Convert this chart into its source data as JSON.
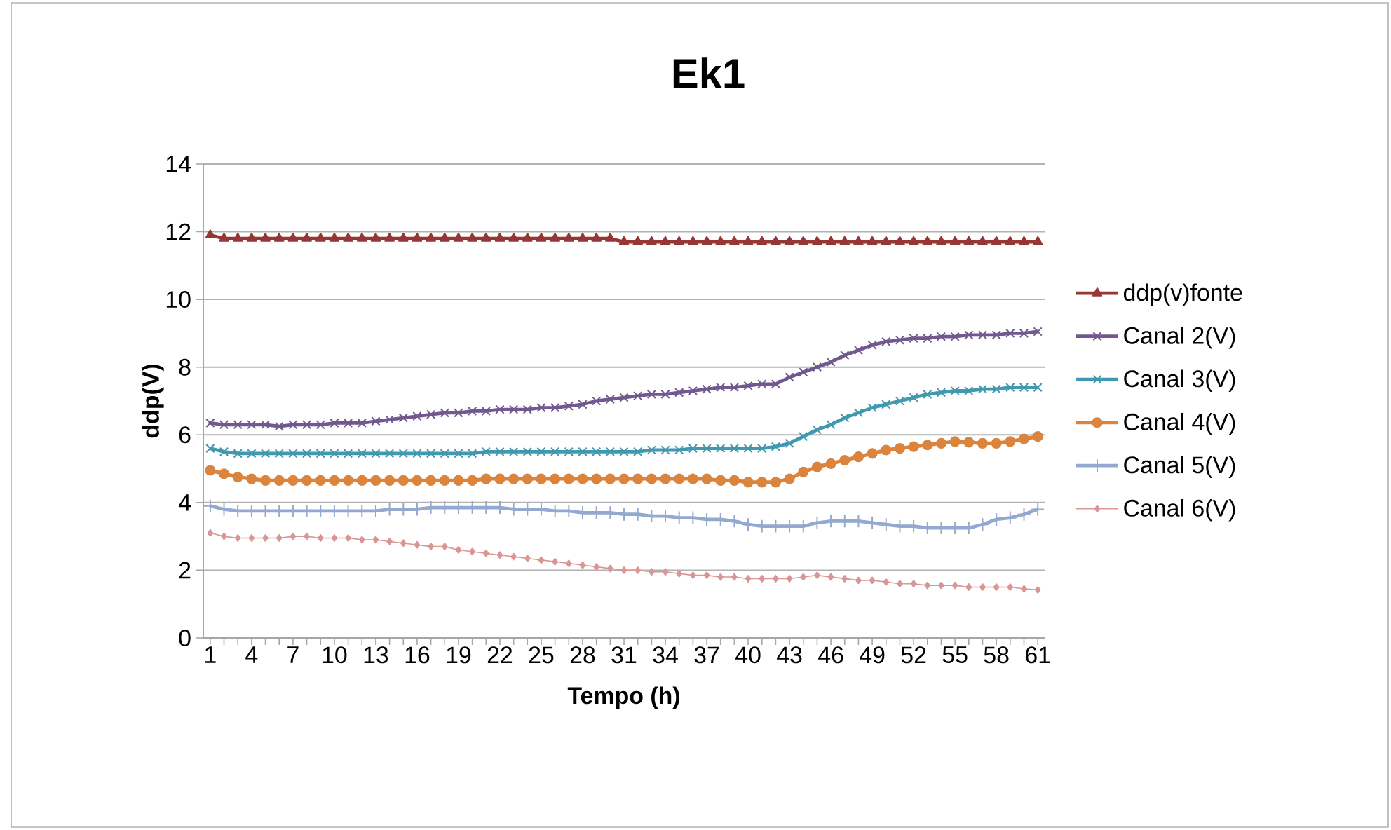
{
  "chart_data": {
    "type": "line",
    "title": "Ek1",
    "xlabel": "Tempo (h)",
    "ylabel": "ddp(V)",
    "categories": [
      "1",
      null,
      null,
      "4",
      null,
      null,
      "7",
      null,
      null,
      "10",
      null,
      null,
      "13",
      null,
      null,
      "16",
      null,
      null,
      "19",
      null,
      null,
      "22",
      null,
      null,
      "25",
      null,
      null,
      "28",
      null,
      null,
      "31",
      null,
      null,
      "34",
      null,
      null,
      "37",
      null,
      null,
      "40",
      null,
      null,
      "43",
      null,
      null,
      "46",
      null,
      null,
      "49",
      null,
      null,
      "52",
      null,
      null,
      "55",
      null,
      null,
      "58",
      null,
      null,
      "61"
    ],
    "ylim": [
      0,
      14
    ],
    "yticks": [
      0,
      2,
      4,
      6,
      8,
      10,
      12,
      14
    ],
    "grid": "y",
    "legend": "right",
    "series": [
      {
        "name": "ddp(v)fonte",
        "color": "#953735",
        "marker": "triangle",
        "values": [
          11.9,
          11.8,
          11.8,
          11.8,
          11.8,
          11.8,
          11.8,
          11.8,
          11.8,
          11.8,
          11.8,
          11.8,
          11.8,
          11.8,
          11.8,
          11.8,
          11.8,
          11.8,
          11.8,
          11.8,
          11.8,
          11.8,
          11.8,
          11.8,
          11.8,
          11.8,
          11.8,
          11.8,
          11.8,
          11.8,
          11.7,
          11.7,
          11.7,
          11.7,
          11.7,
          11.7,
          11.7,
          11.7,
          11.7,
          11.7,
          11.7,
          11.7,
          11.7,
          11.7,
          11.7,
          11.7,
          11.7,
          11.7,
          11.7,
          11.7,
          11.7,
          11.7,
          11.7,
          11.7,
          11.7,
          11.7,
          11.7,
          11.7,
          11.7,
          11.7,
          11.7
        ]
      },
      {
        "name": "Canal 2(V)",
        "color": "#71588f",
        "marker": "cross",
        "values": [
          6.35,
          6.3,
          6.3,
          6.3,
          6.3,
          6.25,
          6.3,
          6.3,
          6.3,
          6.35,
          6.35,
          6.35,
          6.4,
          6.45,
          6.5,
          6.55,
          6.6,
          6.65,
          6.65,
          6.7,
          6.7,
          6.75,
          6.75,
          6.75,
          6.8,
          6.8,
          6.85,
          6.9,
          7.0,
          7.05,
          7.1,
          7.15,
          7.2,
          7.2,
          7.25,
          7.3,
          7.35,
          7.4,
          7.4,
          7.45,
          7.5,
          7.5,
          7.7,
          7.85,
          8.0,
          8.15,
          8.35,
          8.5,
          8.65,
          8.75,
          8.8,
          8.85,
          8.85,
          8.9,
          8.9,
          8.95,
          8.95,
          8.95,
          9.0,
          9.0,
          9.05
        ]
      },
      {
        "name": "Canal 3(V)",
        "color": "#4198af",
        "marker": "cross",
        "values": [
          5.6,
          5.5,
          5.45,
          5.45,
          5.45,
          5.45,
          5.45,
          5.45,
          5.45,
          5.45,
          5.45,
          5.45,
          5.45,
          5.45,
          5.45,
          5.45,
          5.45,
          5.45,
          5.45,
          5.45,
          5.5,
          5.5,
          5.5,
          5.5,
          5.5,
          5.5,
          5.5,
          5.5,
          5.5,
          5.5,
          5.5,
          5.5,
          5.55,
          5.55,
          5.55,
          5.6,
          5.6,
          5.6,
          5.6,
          5.6,
          5.6,
          5.65,
          5.75,
          5.95,
          6.15,
          6.3,
          6.5,
          6.65,
          6.8,
          6.9,
          7.0,
          7.1,
          7.2,
          7.25,
          7.3,
          7.3,
          7.35,
          7.35,
          7.4,
          7.4,
          7.4
        ]
      },
      {
        "name": "Canal 4(V)",
        "color": "#db843d",
        "marker": "circle",
        "values": [
          4.95,
          4.85,
          4.75,
          4.7,
          4.65,
          4.65,
          4.65,
          4.65,
          4.65,
          4.65,
          4.65,
          4.65,
          4.65,
          4.65,
          4.65,
          4.65,
          4.65,
          4.65,
          4.65,
          4.65,
          4.7,
          4.7,
          4.7,
          4.7,
          4.7,
          4.7,
          4.7,
          4.7,
          4.7,
          4.7,
          4.7,
          4.7,
          4.7,
          4.7,
          4.7,
          4.7,
          4.7,
          4.65,
          4.65,
          4.6,
          4.6,
          4.6,
          4.7,
          4.9,
          5.05,
          5.15,
          5.25,
          5.35,
          5.45,
          5.55,
          5.6,
          5.65,
          5.7,
          5.75,
          5.8,
          5.78,
          5.75,
          5.75,
          5.8,
          5.88,
          5.95
        ]
      },
      {
        "name": "Canal 5(V)",
        "color": "#93a9cf",
        "marker": "plus",
        "values": [
          3.9,
          3.8,
          3.75,
          3.75,
          3.75,
          3.75,
          3.75,
          3.75,
          3.75,
          3.75,
          3.75,
          3.75,
          3.75,
          3.8,
          3.8,
          3.8,
          3.85,
          3.85,
          3.85,
          3.85,
          3.85,
          3.85,
          3.8,
          3.8,
          3.8,
          3.75,
          3.75,
          3.7,
          3.7,
          3.7,
          3.65,
          3.65,
          3.6,
          3.6,
          3.55,
          3.55,
          3.5,
          3.5,
          3.45,
          3.35,
          3.3,
          3.3,
          3.3,
          3.3,
          3.4,
          3.45,
          3.45,
          3.45,
          3.4,
          3.35,
          3.3,
          3.3,
          3.25,
          3.25,
          3.25,
          3.25,
          3.35,
          3.5,
          3.55,
          3.65,
          3.8
        ]
      },
      {
        "name": "Canal 6(V)",
        "color": "#d99694",
        "marker": "diamond",
        "values": [
          3.1,
          3.0,
          2.95,
          2.95,
          2.95,
          2.95,
          3.0,
          3.0,
          2.95,
          2.95,
          2.95,
          2.9,
          2.9,
          2.85,
          2.8,
          2.75,
          2.7,
          2.7,
          2.6,
          2.55,
          2.5,
          2.45,
          2.4,
          2.35,
          2.3,
          2.25,
          2.2,
          2.15,
          2.1,
          2.05,
          2.0,
          2.0,
          1.95,
          1.95,
          1.9,
          1.85,
          1.85,
          1.8,
          1.8,
          1.75,
          1.75,
          1.75,
          1.75,
          1.8,
          1.85,
          1.8,
          1.75,
          1.7,
          1.7,
          1.65,
          1.6,
          1.6,
          1.55,
          1.55,
          1.55,
          1.5,
          1.5,
          1.5,
          1.5,
          1.45,
          1.42
        ]
      }
    ]
  }
}
